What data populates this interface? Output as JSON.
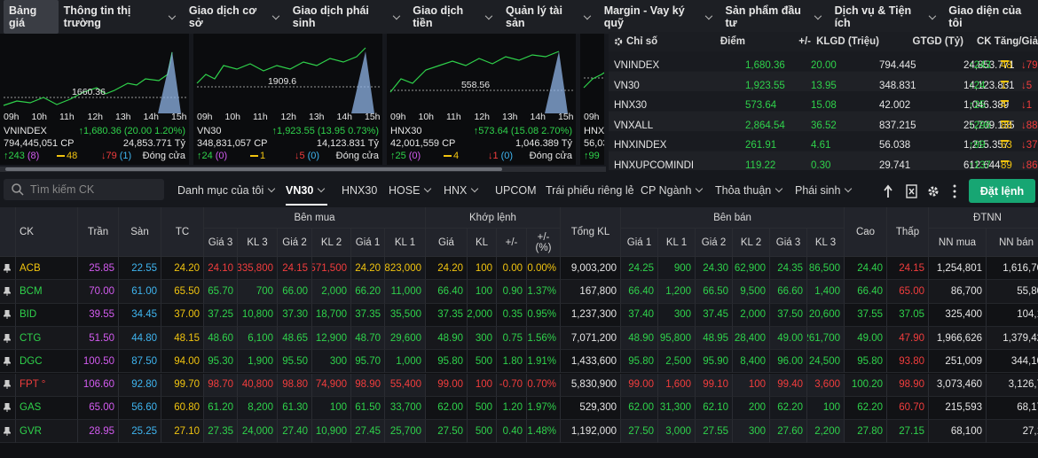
{
  "nav": {
    "items": [
      "Bảng giá",
      "Thông tin thị trường",
      "Giao dịch cơ sở",
      "Giao dịch phái sinh",
      "Giao dịch tiền",
      "Quản lý tài sản",
      "Margin - Vay ký quỹ",
      "Sản phẩm đầu tư",
      "Dịch vụ & Tiện ích",
      "Giao diện của tôi"
    ]
  },
  "index_charts": {
    "time_ticks": [
      "09h",
      "10h",
      "11h",
      "12h",
      "13h",
      "14h",
      "15h"
    ],
    "panels": [
      {
        "name": "VNINDEX",
        "ref_label": "1660.36",
        "change": "↑1,680.36 (20.00 1.20%)",
        "volume": "794,445,051 CP",
        "turnover": "24,853.771 Tỷ",
        "up": "↑243",
        "up_ceiling": "(8)",
        "ref": "48",
        "down": "↓79",
        "down_floor": "(1)",
        "status": "Đóng cửa"
      },
      {
        "name": "VN30",
        "ref_label": "1909.6",
        "change": "↑1,923.55 (13.95 0.73%)",
        "volume": "348,831,057 CP",
        "turnover": "14,123.831 Tỷ",
        "up": "↑24",
        "up_ceiling": "(0)",
        "ref": "1",
        "down": "↓5",
        "down_floor": "(0)",
        "status": "Đóng cửa"
      },
      {
        "name": "HNX30",
        "ref_label": "558.56",
        "change": "↑573.64 (15.08 2.70%)",
        "volume": "42,001,559 CP",
        "turnover": "1,046.389 Tỷ",
        "up": "↑25",
        "up_ceiling": "(0)",
        "ref": "4",
        "down": "↓1",
        "down_floor": "(0)",
        "status": "Đóng cửa"
      },
      {
        "name": "HNXI",
        "volume": "56,03",
        "up": "↑99"
      }
    ]
  },
  "index_table": {
    "headers": [
      "Chỉ số",
      "Điểm",
      "+/-",
      "KLGD (Triệu)",
      "GTGD (Tỷ)",
      "CK Tăng/Giảm"
    ],
    "rows": [
      [
        "VNINDEX",
        "1,680.36",
        "20.00",
        "794.445",
        "24,853.771",
        "↑243",
        "48",
        "↓79"
      ],
      [
        "VN30",
        "1,923.55",
        "13.95",
        "348.831",
        "14,123.831",
        "↑24",
        "1",
        "↓5"
      ],
      [
        "HNX30",
        "573.64",
        "15.08",
        "42.002",
        "1,046.389",
        "↑25",
        "4",
        "↓1"
      ],
      [
        "VNXALL",
        "2,864.54",
        "36.52",
        "837.215",
        "25,709.135",
        "↑296",
        "88",
        "↓88"
      ],
      [
        "HNXINDEX",
        "261.91",
        "4.61",
        "56.038",
        "1,215.357",
        "↑99",
        "63",
        "↓37"
      ],
      [
        "HNXUPCOMINDI",
        "119.22",
        "0.30",
        "29.741",
        "612.644",
        "↑137",
        "89",
        "↓86"
      ]
    ]
  },
  "toolbar": {
    "search_placeholder": "Tìm kiếm CK",
    "tabs": [
      "Danh mục của tôi",
      "VN30",
      "HNX30",
      "HOSE",
      "HNX",
      "UPCOM",
      "Trái phiếu riêng lẻ",
      "CP Ngành",
      "Thỏa thuận",
      "Phái sinh"
    ],
    "order_button": "Đặt lệnh"
  },
  "board": {
    "headers": [
      "CK",
      "Trần",
      "Sàn",
      "TC",
      "Bên mua",
      "Khớp lệnh",
      "Tổng KL",
      "Bên bán",
      "Cao",
      "Thấp",
      "ĐTNN"
    ],
    "subheaders": [
      "Giá 3",
      "KL 3",
      "Giá 2",
      "KL 2",
      "Giá 1",
      "KL 1",
      "Giá",
      "KL",
      "+/-",
      "+/- (%)",
      "Giá 1",
      "KL 1",
      "Giá 2",
      "KL 2",
      "Giá 3",
      "KL 3",
      "NN mua",
      "NN bán"
    ],
    "rows": [
      [
        "ACB",
        "25.85",
        "22.55",
        "24.20",
        "24.10",
        "335,800",
        "24.15",
        "571,500",
        "24.20",
        "823,000",
        "24.20",
        "100",
        "0.00",
        "0.00%",
        "9,003,200",
        "24.25",
        "900",
        "24.30",
        "62,900",
        "24.35",
        "86,500",
        "24.40",
        "24.15",
        "1,254,801",
        "1,616,70"
      ],
      [
        "BCM",
        "70.00",
        "61.00",
        "65.50",
        "65.70",
        "700",
        "66.00",
        "2,000",
        "66.20",
        "11,000",
        "66.40",
        "100",
        "0.90",
        "1.37%",
        "167,800",
        "66.40",
        "1,200",
        "66.50",
        "9,500",
        "66.60",
        "1,400",
        "66.40",
        "65.00",
        "86,700",
        "55,80"
      ],
      [
        "BID",
        "39.55",
        "34.45",
        "37.00",
        "37.25",
        "10,800",
        "37.30",
        "18,700",
        "37.35",
        "35,500",
        "37.35",
        "2,000",
        "0.35",
        "0.95%",
        "1,237,300",
        "37.40",
        "300",
        "37.45",
        "2,000",
        "37.50",
        "20,600",
        "37.55",
        "37.05",
        "325,400",
        "104,1"
      ],
      [
        "CTG",
        "51.50",
        "44.80",
        "48.15",
        "48.60",
        "6,100",
        "48.65",
        "12,900",
        "48.70",
        "29,600",
        "48.90",
        "300",
        "0.75",
        "1.56%",
        "7,071,200",
        "48.90",
        "95,800",
        "48.95",
        "28,400",
        "49.00",
        "261,700",
        "49.00",
        "47.90",
        "1,966,626",
        "1,379,42"
      ],
      [
        "DGC",
        "100.50",
        "87.50",
        "94.00",
        "95.30",
        "1,900",
        "95.50",
        "300",
        "95.70",
        "1,000",
        "95.80",
        "500",
        "1.80",
        "1.91%",
        "1,433,600",
        "95.80",
        "2,500",
        "95.90",
        "8,400",
        "96.00",
        "24,500",
        "95.80",
        "93.80",
        "251,009",
        "344,10"
      ],
      [
        "FPT °",
        "106.60",
        "92.80",
        "99.70",
        "98.70",
        "40,800",
        "98.80",
        "74,900",
        "98.90",
        "55,400",
        "99.00",
        "100",
        "-0.70",
        "-0.70%",
        "5,830,900",
        "99.00",
        "1,600",
        "99.10",
        "100",
        "99.40",
        "3,600",
        "100.20",
        "98.90",
        "3,073,460",
        "3,126,7"
      ],
      [
        "GAS",
        "65.00",
        "56.60",
        "60.80",
        "61.20",
        "8,200",
        "61.30",
        "100",
        "61.50",
        "33,700",
        "62.00",
        "500",
        "1.20",
        "1.97%",
        "529,300",
        "62.00",
        "31,300",
        "62.10",
        "200",
        "62.20",
        "100",
        "62.20",
        "60.70",
        "215,593",
        "68,17"
      ],
      [
        "GVR",
        "28.95",
        "25.25",
        "27.10",
        "27.35",
        "24,000",
        "27.40",
        "10,900",
        "27.45",
        "25,700",
        "27.50",
        "500",
        "0.40",
        "1.48%",
        "1,192,000",
        "27.50",
        "3,000",
        "27.55",
        "300",
        "27.60",
        "2,200",
        "27.80",
        "27.15",
        "68,100",
        "27,1"
      ]
    ]
  }
}
